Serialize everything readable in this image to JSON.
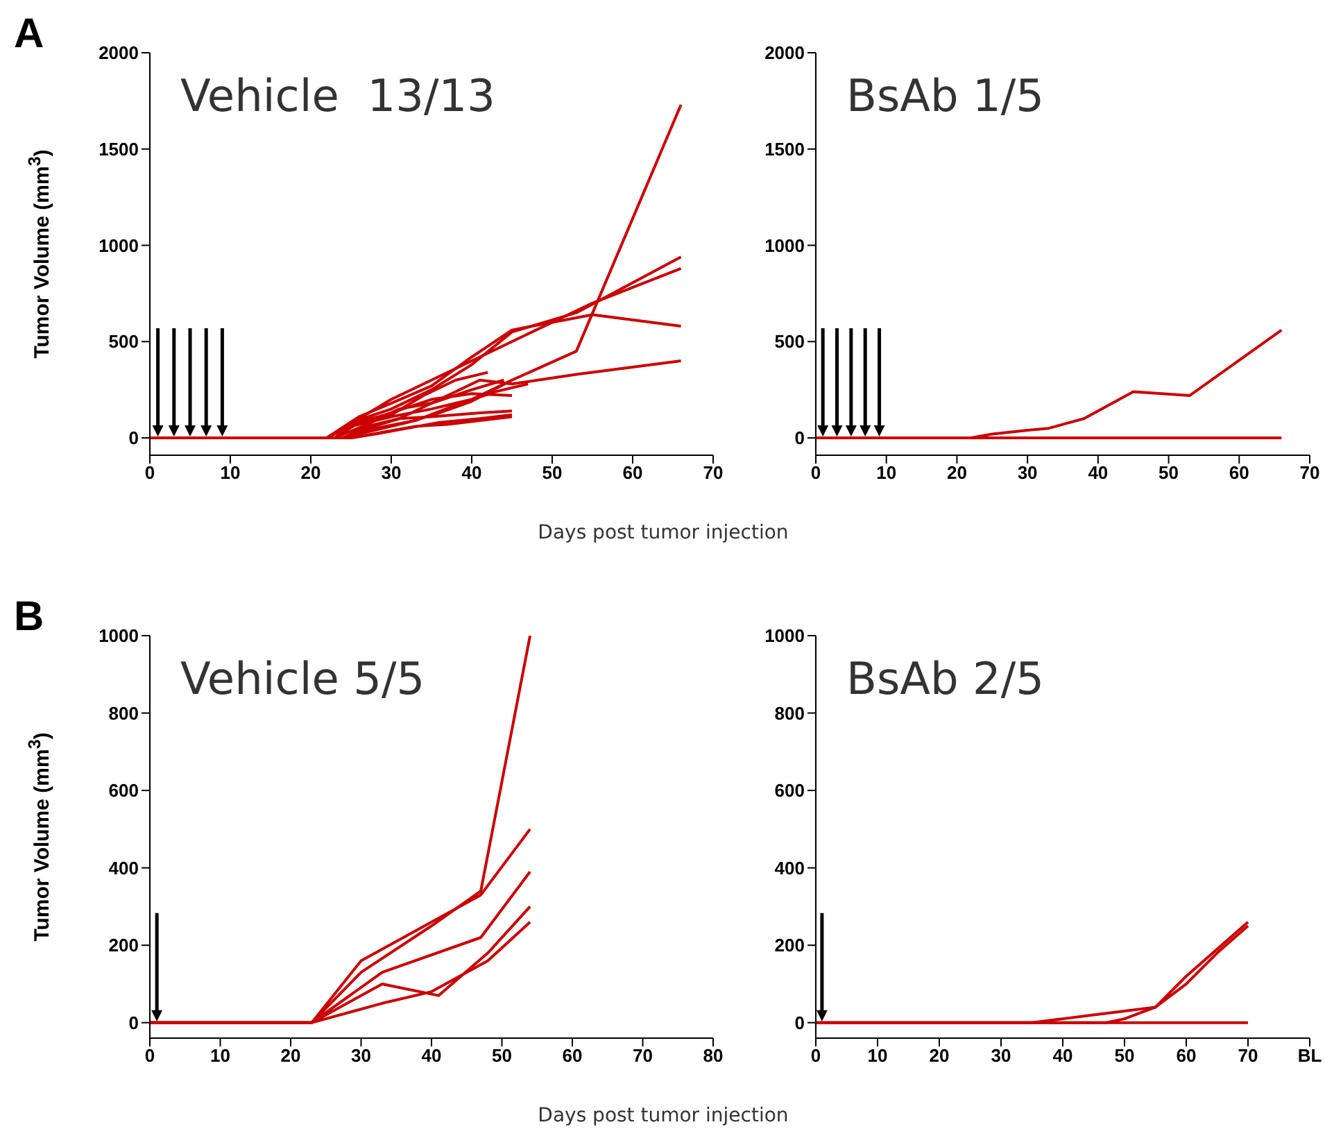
{
  "chart_data": [
    {
      "type": "line",
      "title": "Vehicle  13/13",
      "xlabel": "Days post tumor injection",
      "ylabel": "Tumor Volume (mm$^{3}$)",
      "annotations": [
        "A"
      ],
      "marker": "none",
      "xlim": [
        0,
        70
      ],
      "ylim": [
        -90,
        2000
      ],
      "xticks": [
        0,
        10,
        20,
        30,
        40,
        50,
        60,
        70
      ],
      "yticks": [
        0,
        500,
        1000,
        1500,
        2000
      ],
      "ref_lines": [
        {
          "axis": "x",
          "value": 1,
          "color": "#000000"
        },
        {
          "axis": "x",
          "value": 3,
          "color": "#000000"
        },
        {
          "axis": "x",
          "value": 5,
          "color": "#000000"
        },
        {
          "axis": "x",
          "value": 7,
          "color": "#000000"
        },
        {
          "axis": "x",
          "value": 9,
          "color": "#000000"
        }
      ],
      "series": [
        {
          "color": "#cc0000",
          "x": [
            0,
            22,
            25,
            30,
            35,
            40,
            45,
            53,
            66
          ],
          "values": [
            0,
            0,
            60,
            110,
            150,
            200,
            300,
            450,
            1730
          ]
        },
        {
          "color": "#cc0000",
          "x": [
            0,
            22,
            25,
            30,
            35,
            40,
            45,
            53,
            66
          ],
          "values": [
            0,
            0,
            80,
            150,
            250,
            380,
            550,
            650,
            940
          ]
        },
        {
          "color": "#cc0000",
          "x": [
            0,
            23,
            26,
            30,
            35,
            40,
            45,
            55,
            66
          ],
          "values": [
            0,
            0,
            100,
            200,
            300,
            400,
            500,
            700,
            880
          ]
        },
        {
          "color": "#cc0000",
          "x": [
            0,
            22,
            26,
            30,
            35,
            40,
            45,
            55,
            66
          ],
          "values": [
            0,
            0,
            110,
            180,
            270,
            420,
            560,
            640,
            580
          ]
        },
        {
          "color": "#cc0000",
          "x": [
            0,
            24,
            27,
            31,
            36,
            41,
            45,
            53,
            66
          ],
          "values": [
            0,
            0,
            50,
            100,
            200,
            300,
            280,
            330,
            400
          ]
        },
        {
          "color": "#cc0000",
          "x": [
            0,
            23,
            26,
            30,
            35,
            40,
            45
          ],
          "values": [
            0,
            0,
            80,
            130,
            200,
            230,
            220
          ]
        },
        {
          "color": "#cc0000",
          "x": [
            0,
            24,
            28,
            32,
            36,
            40,
            45
          ],
          "values": [
            0,
            0,
            40,
            80,
            130,
            190,
            300
          ]
        },
        {
          "color": "#cc0000",
          "x": [
            0,
            24,
            27,
            31,
            35,
            41,
            45
          ],
          "values": [
            0,
            0,
            60,
            100,
            110,
            130,
            140
          ]
        },
        {
          "color": "#cc0000",
          "x": [
            0,
            25,
            28,
            32,
            36,
            41,
            45
          ],
          "values": [
            0,
            0,
            20,
            50,
            80,
            100,
            120
          ]
        },
        {
          "color": "#cc0000",
          "x": [
            0,
            22,
            26,
            30,
            34,
            38,
            42
          ],
          "values": [
            0,
            0,
            90,
            120,
            220,
            300,
            340
          ]
        },
        {
          "color": "#cc0000",
          "x": [
            0,
            25,
            29,
            33,
            37,
            41,
            45
          ],
          "values": [
            0,
            0,
            30,
            60,
            70,
            90,
            110
          ]
        },
        {
          "color": "#cc0000",
          "x": [
            0,
            23,
            27,
            31,
            35,
            40,
            44
          ],
          "values": [
            0,
            0,
            70,
            150,
            180,
            250,
            300
          ]
        },
        {
          "color": "#cc0000",
          "x": [
            0,
            24,
            28,
            33,
            38,
            43,
            47
          ],
          "values": [
            0,
            0,
            50,
            90,
            170,
            240,
            280
          ]
        }
      ]
    },
    {
      "type": "line",
      "title": "BsAb 1/5",
      "marker": "none",
      "xlim": [
        0,
        70
      ],
      "ylim": [
        -90,
        2000
      ],
      "xticks": [
        0,
        10,
        20,
        30,
        40,
        50,
        60,
        70
      ],
      "yticks": [
        0,
        500,
        1000,
        1500,
        2000
      ],
      "ref_lines": [
        {
          "axis": "x",
          "value": 1,
          "color": "#000000"
        },
        {
          "axis": "x",
          "value": 3,
          "color": "#000000"
        },
        {
          "axis": "x",
          "value": 5,
          "color": "#000000"
        },
        {
          "axis": "x",
          "value": 7,
          "color": "#000000"
        },
        {
          "axis": "x",
          "value": 9,
          "color": "#000000"
        }
      ],
      "series": [
        {
          "color": "#cc0000",
          "x": [
            0,
            22,
            25,
            30,
            33,
            38,
            45,
            49,
            53,
            66
          ],
          "values": [
            0,
            0,
            20,
            40,
            50,
            100,
            240,
            230,
            220,
            560
          ]
        },
        {
          "color": "#cc0000",
          "x": [
            0,
            66
          ],
          "values": [
            0,
            0
          ]
        }
      ]
    },
    {
      "type": "line",
      "title": "Vehicle 5/5",
      "xlabel": "Days post tumor injection",
      "ylabel": "Tumor Volume (mm$^{3}$)",
      "annotations": [
        "B"
      ],
      "marker": "none",
      "xlim": [
        0,
        80
      ],
      "ylim": [
        -40,
        1000
      ],
      "xticks": [
        0,
        10,
        20,
        30,
        40,
        50,
        60,
        70,
        80
      ],
      "yticks": [
        0,
        200,
        400,
        600,
        800,
        1000
      ],
      "ref_lines": [
        {
          "axis": "x",
          "value": 1,
          "color": "#000000"
        }
      ],
      "series": [
        {
          "color": "#cc0000",
          "x": [
            0,
            23,
            30,
            40,
            47,
            54
          ],
          "values": [
            0,
            0,
            130,
            250,
            340,
            1000
          ]
        },
        {
          "color": "#cc0000",
          "x": [
            0,
            23,
            30,
            40,
            47,
            54
          ],
          "values": [
            0,
            0,
            160,
            260,
            330,
            500
          ]
        },
        {
          "color": "#cc0000",
          "x": [
            0,
            23,
            33,
            47,
            54
          ],
          "values": [
            0,
            0,
            130,
            220,
            390
          ]
        },
        {
          "color": "#cc0000",
          "x": [
            0,
            23,
            33,
            41,
            48,
            54
          ],
          "values": [
            0,
            0,
            100,
            70,
            180,
            300
          ]
        },
        {
          "color": "#cc0000",
          "x": [
            0,
            23,
            33,
            40,
            48,
            54
          ],
          "values": [
            0,
            0,
            50,
            80,
            160,
            260
          ]
        }
      ]
    },
    {
      "type": "line",
      "title": "BsAb 2/5",
      "marker": "none",
      "xlim": [
        0,
        80
      ],
      "ylim": [
        -40,
        1000
      ],
      "xticks": [
        0,
        10,
        20,
        30,
        40,
        50,
        60,
        70,
        {
          "value": 80,
          "label": "BL"
        }
      ],
      "yticks": [
        0,
        200,
        400,
        600,
        800,
        1000
      ],
      "ref_lines": [
        {
          "axis": "x",
          "value": 1,
          "color": "#000000"
        }
      ],
      "series": [
        {
          "color": "#cc0000",
          "x": [
            0,
            35,
            40,
            45,
            50,
            55,
            60,
            65,
            70
          ],
          "values": [
            0,
            0,
            10,
            20,
            30,
            40,
            120,
            190,
            260
          ]
        },
        {
          "color": "#cc0000",
          "x": [
            0,
            47,
            50,
            55,
            60,
            65,
            70
          ],
          "values": [
            0,
            0,
            10,
            40,
            100,
            180,
            250
          ]
        },
        {
          "color": "#cc0000",
          "x": [
            0,
            70
          ],
          "values": [
            0,
            0
          ]
        }
      ]
    }
  ]
}
